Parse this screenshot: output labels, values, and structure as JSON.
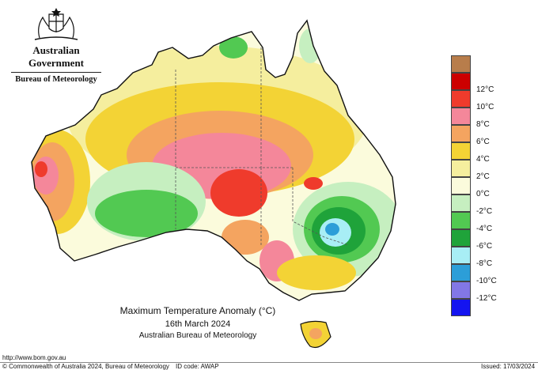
{
  "header": {
    "government": "Australian Government",
    "bureau": "Bureau of Meteorology"
  },
  "map": {
    "title": "Maximum Temperature Anomaly (°C)",
    "date": "16th March 2024",
    "source": "Australian Bureau of Meteorology"
  },
  "legend": {
    "items": [
      {
        "label": "",
        "color": "#b87d4b"
      },
      {
        "label": "12°C",
        "color": "#cc0000"
      },
      {
        "label": "10°C",
        "color": "#ef3b2c"
      },
      {
        "label": "8°C",
        "color": "#f4879a"
      },
      {
        "label": "6°C",
        "color": "#f4a460"
      },
      {
        "label": "4°C",
        "color": "#f3d335"
      },
      {
        "label": "2°C",
        "color": "#f5ee9e"
      },
      {
        "label": "0°C",
        "color": "#fbfbdc"
      },
      {
        "label": "-2°C",
        "color": "#c6efc0"
      },
      {
        "label": "-4°C",
        "color": "#52c952"
      },
      {
        "label": "-6°C",
        "color": "#1fa33a"
      },
      {
        "label": "-8°C",
        "color": "#a8eef5"
      },
      {
        "label": "-10°C",
        "color": "#2c9ed8"
      },
      {
        "label": "-12°C",
        "color": "#8277e6"
      },
      {
        "label": "",
        "color": "#1414f0"
      }
    ]
  },
  "footer": {
    "url": "http://www.bom.gov.au",
    "copyright": "© Commonwealth of Australia 2024, Bureau of Meteorology",
    "id_code": "ID code: AWAP",
    "issued": "Issued: 17/03/2024"
  }
}
